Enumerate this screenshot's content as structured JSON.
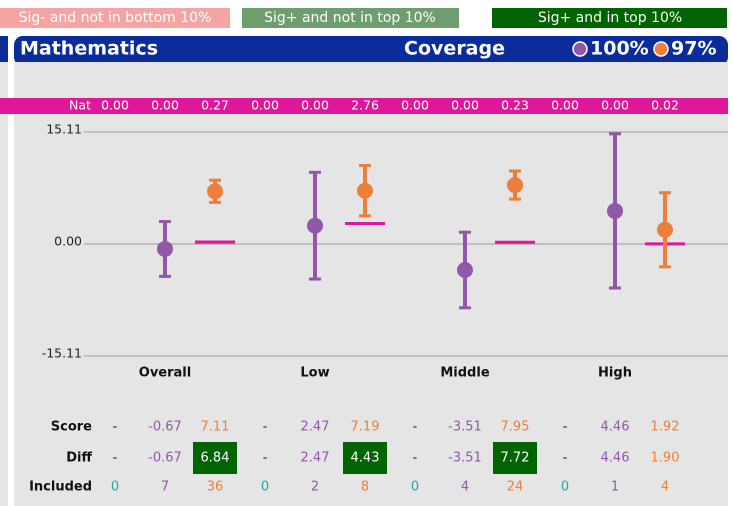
{
  "legend_boxes": [
    "Sig- and not in bottom 10%",
    "Sig+ and not in top 10%",
    "Sig+ and in top 10%"
  ],
  "header": {
    "title": "Mathematics"
  },
  "chart_data": {
    "type": "errorbar",
    "legend_title": "Coverage",
    "categories": [
      "Overall",
      "Low",
      "Middle",
      "High"
    ],
    "series": [
      {
        "name": "100%",
        "color": "#9158a8",
        "values": [
          -0.67,
          2.47,
          -3.51,
          4.46
        ],
        "errors": [
          3.7,
          7.2,
          5.1,
          10.4
        ]
      },
      {
        "name": "97%",
        "color": "#ee7f3a",
        "values": [
          7.11,
          7.19,
          7.95,
          1.92
        ],
        "errors": [
          1.5,
          3.4,
          1.9,
          5.0
        ]
      }
    ],
    "nat": {
      "name": "Nat",
      "color": "#e0169b",
      "values": [
        0,
        0,
        0.27,
        0,
        0,
        2.76,
        0,
        0,
        0.23,
        0,
        0,
        0.02
      ],
      "value_labels": [
        "0.00",
        "0.00",
        "0.27",
        "0.00",
        "0.00",
        "2.76",
        "0.00",
        "0.00",
        "0.23",
        "0.00",
        "0.00",
        "0.02"
      ]
    },
    "ylim": [
      -15.11,
      15.11
    ],
    "yticks": [
      15.11,
      {
        "value": 0,
        "label": "0.00"
      },
      -15.11
    ],
    "grid": true
  },
  "table": {
    "rows": [
      {
        "label": "Score",
        "cells": [
          "-",
          "-0.67",
          "7.11",
          "-",
          "2.47",
          "7.19",
          "-",
          "-3.51",
          "7.95",
          "-",
          "4.46",
          "1.92"
        ]
      },
      {
        "label": "Diff",
        "cells": [
          "-",
          "-0.67",
          "6.84",
          "-",
          "2.47",
          "4.43",
          "-",
          "-3.51",
          "7.72",
          "-",
          "4.46",
          "1.90"
        ],
        "highlight": [
          false,
          false,
          true,
          false,
          false,
          true,
          false,
          false,
          true,
          false,
          false,
          false
        ]
      },
      {
        "label": "Included",
        "cells": [
          "0",
          "7",
          "36",
          "0",
          "2",
          "8",
          "0",
          "4",
          "24",
          "0",
          "1",
          "4"
        ]
      }
    ]
  }
}
